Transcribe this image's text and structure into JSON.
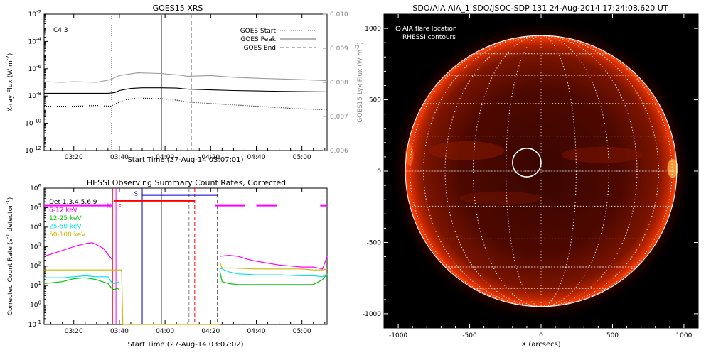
{
  "chart_data": [
    {
      "type": "line",
      "title": "GOES15 XRS",
      "xlabel": "Start Time (27-Aug-14 03:07:01)",
      "ylabel": "X-ray Flux (W m$^{-2}$)",
      "ylabel_display": "X-ray Flux (W m",
      "ylabel_sup": "-2",
      "ylabel_close": ")",
      "y2label_display": "GOES15 Lyx Flux (W m",
      "y2label_sup": "-2",
      "y2label_close": ")",
      "x_tick_labels": [
        "03:20",
        "03:40",
        "04:00",
        "04:20",
        "04:40",
        "05:00"
      ],
      "x_tick_minutes": [
        200,
        220,
        240,
        260,
        280,
        300
      ],
      "xlim_minutes": [
        187,
        311
      ],
      "y_scale": "log",
      "ylim_exp": [
        -12,
        -2
      ],
      "y_tick_base": "10",
      "y_tick_exps": [
        "-12",
        "-10",
        "-8",
        "-6",
        "-4",
        "-2"
      ],
      "y2lim": [
        0.006,
        0.01
      ],
      "y2_tick_labels": [
        "0.006",
        "0.007",
        "0.008",
        "0.009",
        "0.010"
      ],
      "y2_tick_values": [
        0.006,
        0.007,
        0.008,
        0.009,
        0.01
      ],
      "class_label": "C4.3",
      "legend": [
        {
          "name": "GOES Start",
          "style": "dotted"
        },
        {
          "name": "GOES Peak",
          "style": "solid"
        },
        {
          "name": "GOES End",
          "style": "dashed"
        }
      ],
      "markers_minutes": {
        "start": 216.5,
        "peak": 238.5,
        "end": 251.5
      },
      "series": [
        {
          "name": "long",
          "color": "#000000",
          "style": "solid",
          "x": [
            187,
            200,
            210,
            215,
            218,
            220,
            225,
            230,
            238,
            245,
            250,
            260,
            270,
            280,
            290,
            300,
            311
          ],
          "y_exp": [
            -7.8,
            -7.8,
            -7.8,
            -7.8,
            -7.75,
            -7.6,
            -7.45,
            -7.4,
            -7.4,
            -7.42,
            -7.5,
            -7.55,
            -7.6,
            -7.63,
            -7.66,
            -7.68,
            -7.7
          ]
        },
        {
          "name": "lya",
          "color": "#9a9a9a",
          "style": "solid",
          "x": [
            187,
            195,
            200,
            210,
            216,
            220,
            228,
            238,
            245,
            250,
            260,
            270,
            280,
            290,
            300,
            311
          ],
          "y2": [
            0.00802,
            0.008,
            0.00802,
            0.008,
            0.00808,
            0.0082,
            0.00828,
            0.00826,
            0.00822,
            0.00818,
            0.0082,
            0.00815,
            0.00812,
            0.0081,
            0.00808,
            0.00805
          ]
        },
        {
          "name": "short",
          "color": "#000000",
          "style": "dotted",
          "x": [
            187,
            200,
            210,
            216,
            222,
            228,
            238,
            245,
            250,
            260,
            270,
            280,
            290,
            300,
            311
          ],
          "y_exp": [
            -8.75,
            -8.75,
            -8.7,
            -8.75,
            -8.3,
            -8.15,
            -8.2,
            -8.3,
            -8.45,
            -8.55,
            -8.65,
            -8.75,
            -8.85,
            -8.95,
            -9.0
          ]
        }
      ]
    },
    {
      "type": "line",
      "title": "HESSI Observing Summary Count Rates, Corrected",
      "xlabel": "Start Time (27-Aug-14 03:07:02)",
      "ylabel_display": "Corrected Count Rate (s",
      "ylabel_sup": "-1",
      "ylabel_mid": " detector",
      "ylabel_sup2": "-1",
      "ylabel_close": ")",
      "x_tick_labels": [
        "03:20",
        "03:40",
        "04:00",
        "04:20",
        "04:40",
        "05:00"
      ],
      "x_tick_minutes": [
        200,
        220,
        240,
        260,
        280,
        300
      ],
      "xlim_minutes": [
        187,
        311
      ],
      "y_scale": "log",
      "ylim_exp": [
        -1,
        6
      ],
      "y_tick_base": "10",
      "y_tick_exps": [
        "-1",
        "0",
        "1",
        "2",
        "3",
        "4",
        "5",
        "6"
      ],
      "legend": [
        {
          "name": "Det 1,3,4,5,6,9",
          "color": "#000000"
        },
        {
          "name": "6-12 keV",
          "color": "#ff00ff"
        },
        {
          "name": "12-25 keV",
          "color": "#00c800"
        },
        {
          "name": "25-50 keV",
          "color": "#00e5e5"
        },
        {
          "name": "50-100 keV",
          "color": "#d2b400"
        }
      ],
      "flag_labels": {
        "night": "N",
        "flare": "F",
        "saa": "S"
      },
      "flag_bars": [
        {
          "name": "night",
          "color": "#ff00ff",
          "x_start": 187,
          "x_end": 217,
          "y_exp": 5.1
        },
        {
          "name": "night",
          "color": "#ff00ff",
          "x_start": 262,
          "x_end": 275,
          "y_exp": 5.1
        },
        {
          "name": "night",
          "color": "#ff00ff",
          "x_start": 280,
          "x_end": 289,
          "y_exp": 5.1
        },
        {
          "name": "night",
          "color": "#ff00ff",
          "x_start": 308,
          "x_end": 311,
          "y_exp": 5.1
        },
        {
          "name": "flare",
          "color": "#ff0000",
          "x_start": 217.5,
          "x_end": 253,
          "y_exp": 5.35
        },
        {
          "name": "saa",
          "color": "#0000c8",
          "x_start": 230,
          "x_end": 263,
          "y_exp": 5.65
        }
      ],
      "vlines": [
        {
          "x": 217.0,
          "color": "#ff0000",
          "style": "solid"
        },
        {
          "x": 218.5,
          "color": "#ff00ff",
          "style": "solid"
        },
        {
          "x": 230.0,
          "color": "#0000c8",
          "style": "solid"
        },
        {
          "x": 238.5,
          "color": "#808080",
          "style": "solid"
        },
        {
          "x": 250.5,
          "color": "#808080",
          "style": "dashed"
        },
        {
          "x": 253.0,
          "color": "#ff0000",
          "style": "dashed"
        },
        {
          "x": 263.0,
          "color": "#000000",
          "style": "dashed"
        }
      ],
      "series": [
        {
          "name": "6-12 keV",
          "color": "#ff00ff",
          "segments": [
            {
              "x": [
                187,
                195,
                200,
                205,
                208,
                210,
                213,
                215,
                217
              ],
              "y_exp": [
                2.5,
                2.8,
                3.0,
                3.15,
                3.2,
                3.1,
                2.9,
                2.6,
                2.3
              ]
            },
            {
              "x": [
                264,
                268,
                272,
                276,
                280,
                285,
                290,
                295,
                300,
                305,
                309,
                311
              ],
              "y_exp": [
                2.5,
                2.55,
                2.5,
                2.35,
                2.25,
                2.15,
                2.05,
                2.0,
                1.95,
                1.95,
                1.85,
                2.5
              ]
            }
          ]
        },
        {
          "name": "12-25 keV",
          "color": "#00c800",
          "segments": [
            {
              "x": [
                187,
                195,
                200,
                205,
                210,
                215,
                217,
                218,
                219,
                220
              ],
              "y_exp": [
                1.1,
                1.2,
                1.35,
                1.4,
                1.3,
                1.1,
                0.8,
                0.8,
                0.85,
                0.8
              ]
            },
            {
              "x": [
                264,
                265,
                268,
                272,
                280,
                290,
                300,
                305,
                309,
                311
              ],
              "y_exp": [
                1.75,
                1.2,
                1.1,
                1.05,
                1.05,
                1.05,
                1.05,
                1.05,
                1.3,
                1.6
              ]
            }
          ]
        },
        {
          "name": "25-50 keV",
          "color": "#00e5e5",
          "segments": [
            {
              "x": [
                187,
                195,
                200,
                205,
                210,
                215,
                217,
                218,
                220
              ],
              "y_exp": [
                1.4,
                1.4,
                1.45,
                1.5,
                1.45,
                1.45,
                1.1,
                1.1,
                1.2
              ]
            },
            {
              "x": [
                264,
                268,
                272,
                280,
                290,
                300,
                305,
                309,
                311
              ],
              "y_exp": [
                1.9,
                1.7,
                1.6,
                1.55,
                1.55,
                1.5,
                1.5,
                1.45,
                1.6
              ]
            }
          ]
        },
        {
          "name": "50-100 keV",
          "color": "#d2b400",
          "segments": [
            {
              "x": [
                187,
                195,
                200,
                210,
                215,
                217,
                217.5,
                220,
                221,
                221.5
              ],
              "y_exp": [
                1.8,
                1.8,
                1.8,
                1.8,
                1.8,
                1.8,
                1.8,
                1.8,
                1.8,
                -1.0
              ]
            },
            {
              "x": [
                221.5,
                264
              ],
              "y_exp": [
                -1.0,
                -1.0
              ]
            },
            {
              "x": [
                264,
                265,
                270,
                280,
                290,
                300,
                305,
                309,
                311
              ],
              "y_exp": [
                2.2,
                1.9,
                1.9,
                1.85,
                1.85,
                1.85,
                1.8,
                1.8,
                1.85
              ]
            }
          ]
        }
      ]
    },
    {
      "type": "heatmap",
      "title": "SDO/AIA AIA_1 SDO/JSOC-SDP 131 24-Aug-2014 17:24:08.620 UT",
      "xlabel": "X (arcsecs)",
      "ylabel": "",
      "x_tick_labels": [
        "-1000",
        "-500",
        "0",
        "500",
        "1000"
      ],
      "x_tick_values": [
        -1000,
        -500,
        0,
        500,
        1000
      ],
      "y_tick_labels": [
        "-1000",
        "-500",
        "0",
        "500",
        "1000"
      ],
      "y_tick_values": [
        -1000,
        -500,
        0,
        500,
        1000
      ],
      "xlim": [
        -1100,
        1100
      ],
      "ylim": [
        -1100,
        1100
      ],
      "solar_radius_arcsec": 950,
      "grid_spacing_deg": 15,
      "legend": [
        "AIA flare location",
        "RHESSI contours"
      ],
      "flare_location": {
        "x": -100,
        "y": 60,
        "radius_arcsec": 100
      },
      "colors": {
        "background": "#000000",
        "disk": "#6b0b00",
        "limb": "#ff3000",
        "grid": "#ffffff",
        "text": "#ffffff"
      }
    }
  ]
}
